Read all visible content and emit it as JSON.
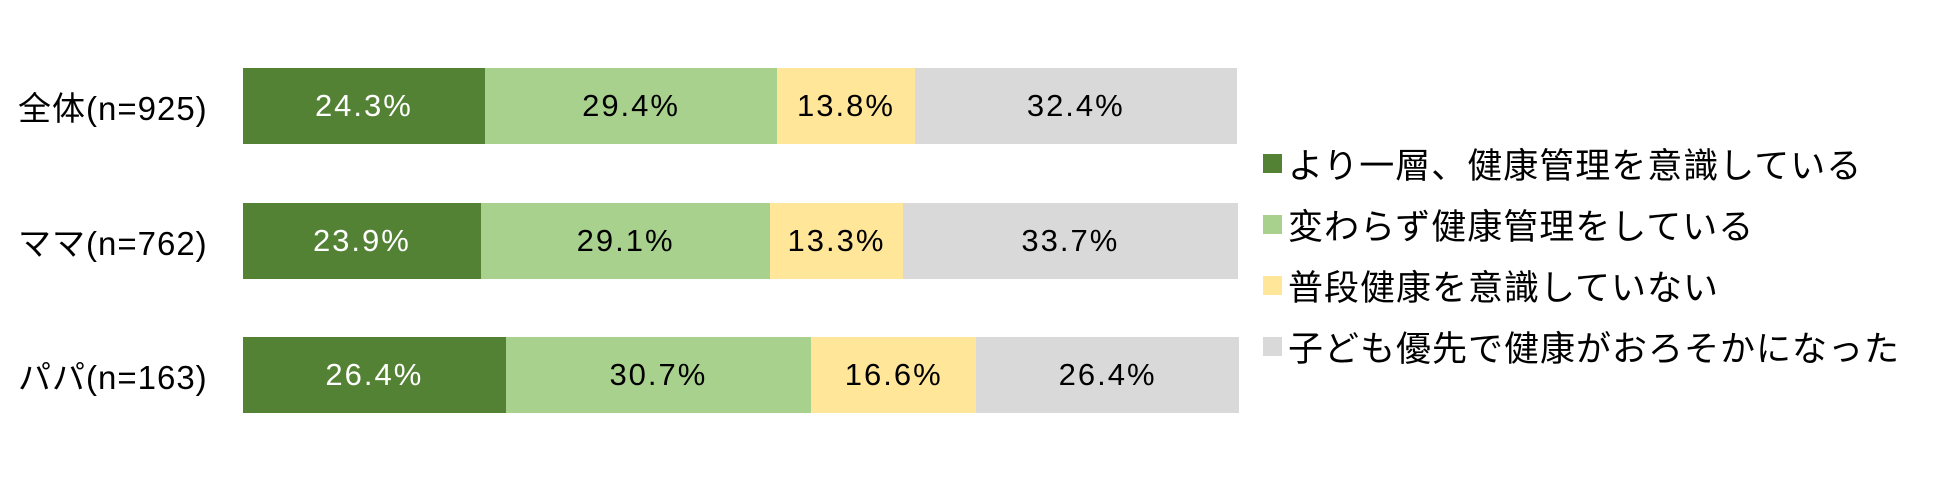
{
  "chart_data": {
    "type": "bar",
    "orientation": "horizontal",
    "stacked": true,
    "title": "",
    "xlabel": "",
    "ylabel": "",
    "unit": "%",
    "xlim": [
      0,
      100
    ],
    "grid": false,
    "legend_position": "right",
    "background_color": "#ffffff",
    "categories": [
      "全体(n=925)",
      "ママ(n=762)",
      "パパ(n=163)"
    ],
    "series": [
      {
        "name": "より一層、健康管理を意識している",
        "color": "#548235",
        "label_text_color": "#ffffff",
        "values": [
          24.3,
          23.9,
          26.4
        ],
        "labels": [
          "24.3%",
          "23.9%",
          "26.4%"
        ]
      },
      {
        "name": "変わらず健康管理をしている",
        "color": "#a9d18e",
        "label_text_color": "#000000",
        "values": [
          29.4,
          29.1,
          30.7
        ],
        "labels": [
          "29.4%",
          "29.1%",
          "30.7%"
        ]
      },
      {
        "name": "普段健康を意識していない",
        "color": "#ffe699",
        "label_text_color": "#000000",
        "values": [
          13.8,
          13.3,
          16.6
        ],
        "labels": [
          "13.8%",
          "13.3%",
          "16.6%"
        ]
      },
      {
        "name": "子ども優先で健康がおろそかになった",
        "color": "#d9d9d9",
        "label_text_color": "#000000",
        "values": [
          32.4,
          33.7,
          26.4
        ],
        "labels": [
          "32.4%",
          "33.7%",
          "26.4%"
        ]
      }
    ]
  }
}
